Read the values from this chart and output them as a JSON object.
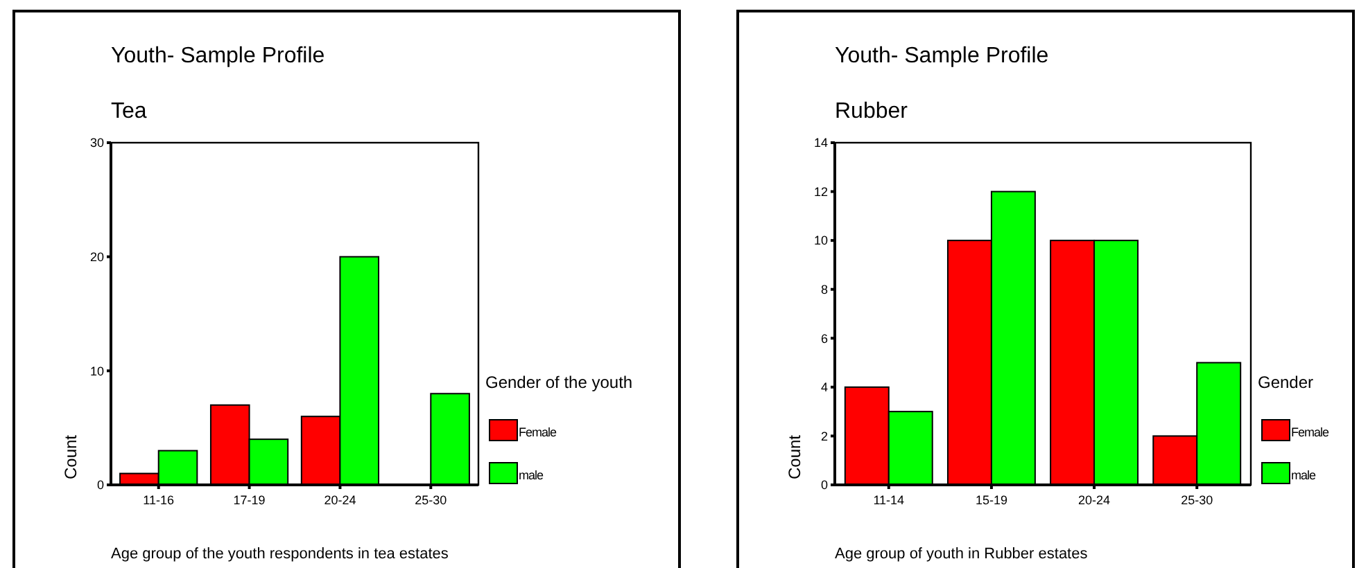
{
  "chart_data": [
    {
      "type": "bar",
      "title": "Youth- Sample Profile",
      "subtitle": "Tea",
      "xlabel": "Age group of the youth respondents in tea estates",
      "ylabel": "Count",
      "legend_title": "Gender of the youth",
      "categories": [
        "11-16",
        "17-19",
        "20-24",
        "25-30"
      ],
      "series": [
        {
          "name": "Female",
          "color": "#ff0000",
          "values": [
            1,
            7,
            6,
            null
          ]
        },
        {
          "name": "male",
          "color": "#00ff00",
          "values": [
            3,
            4,
            20,
            8
          ]
        }
      ],
      "ylim": [
        0,
        30
      ],
      "yticks": [
        0,
        10,
        20,
        30
      ],
      "legend": "right"
    },
    {
      "type": "bar",
      "title": "Youth- Sample Profile",
      "subtitle": "Rubber",
      "xlabel": "Age group of youth in Rubber estates",
      "ylabel": "Count",
      "legend_title": "Gender",
      "categories": [
        "11-14",
        "15-19",
        "20-24",
        "25-30"
      ],
      "series": [
        {
          "name": "Female",
          "color": "#ff0000",
          "values": [
            4,
            10,
            10,
            2
          ]
        },
        {
          "name": "male",
          "color": "#00ff00",
          "values": [
            3,
            12,
            10,
            5
          ]
        }
      ],
      "ylim": [
        0,
        14
      ],
      "yticks": [
        0,
        2,
        4,
        6,
        8,
        10,
        12,
        14
      ],
      "legend": "right"
    }
  ]
}
